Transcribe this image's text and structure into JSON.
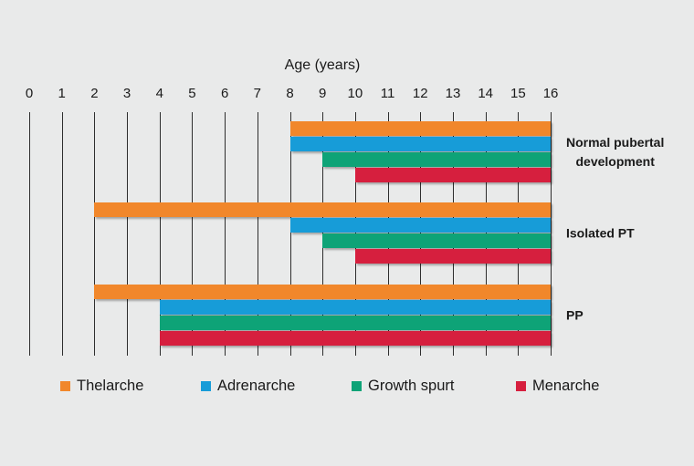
{
  "title": "Age (years)",
  "colors": {
    "background": "#E9EAEA",
    "grid": "#2E2E2E",
    "text": "#1A1A1A",
    "thelarche": "#F1872B",
    "adrenarche": "#179CD8",
    "growth_spurt": "#0EA377",
    "menarche": "#D61F3E"
  },
  "chart_data": {
    "type": "bar",
    "subtype": "horizontal-range-gantt",
    "title": "Age (years)",
    "xlabel": "Age (years)",
    "xlim": [
      0,
      16
    ],
    "x_ticks": [
      0,
      1,
      2,
      3,
      4,
      5,
      6,
      7,
      8,
      9,
      10,
      11,
      12,
      13,
      14,
      15,
      16
    ],
    "grid": true,
    "legend_position": "bottom",
    "series": [
      {
        "name": "Thelarche",
        "color": "#F1872B"
      },
      {
        "name": "Adrenarche",
        "color": "#179CD8"
      },
      {
        "name": "Growth spurt",
        "color": "#0EA377"
      },
      {
        "name": "Menarche",
        "color": "#D61F3E"
      }
    ],
    "categories": [
      "Normal pubertal development",
      "Isolated PT",
      "PP"
    ],
    "groups": [
      {
        "label": "Normal pubertal development",
        "label_lines": [
          "Normal pubertal",
          "development"
        ],
        "bars": [
          {
            "series": "Thelarche",
            "start": 8,
            "end": 16
          },
          {
            "series": "Adrenarche",
            "start": 8,
            "end": 16
          },
          {
            "series": "Growth spurt",
            "start": 9,
            "end": 16
          },
          {
            "series": "Menarche",
            "start": 10,
            "end": 16
          }
        ]
      },
      {
        "label": "Isolated PT",
        "label_lines": [
          "Isolated PT"
        ],
        "bars": [
          {
            "series": "Thelarche",
            "start": 2,
            "end": 16
          },
          {
            "series": "Adrenarche",
            "start": 8,
            "end": 16
          },
          {
            "series": "Growth spurt",
            "start": 9,
            "end": 16
          },
          {
            "series": "Menarche",
            "start": 10,
            "end": 16
          }
        ]
      },
      {
        "label": "PP",
        "label_lines": [
          "PP"
        ],
        "bars": [
          {
            "series": "Thelarche",
            "start": 2,
            "end": 16
          },
          {
            "series": "Adrenarche",
            "start": 4,
            "end": 16
          },
          {
            "series": "Growth spurt",
            "start": 4,
            "end": 16
          },
          {
            "series": "Menarche",
            "start": 4,
            "end": 16
          }
        ]
      }
    ]
  },
  "legend": {
    "items": [
      {
        "label": "Thelarche",
        "color": "#F1872B"
      },
      {
        "label": "Adrenarche",
        "color": "#179CD8"
      },
      {
        "label": "Growth spurt",
        "color": "#0EA377"
      },
      {
        "label": "Menarche",
        "color": "#D61F3E"
      }
    ]
  }
}
